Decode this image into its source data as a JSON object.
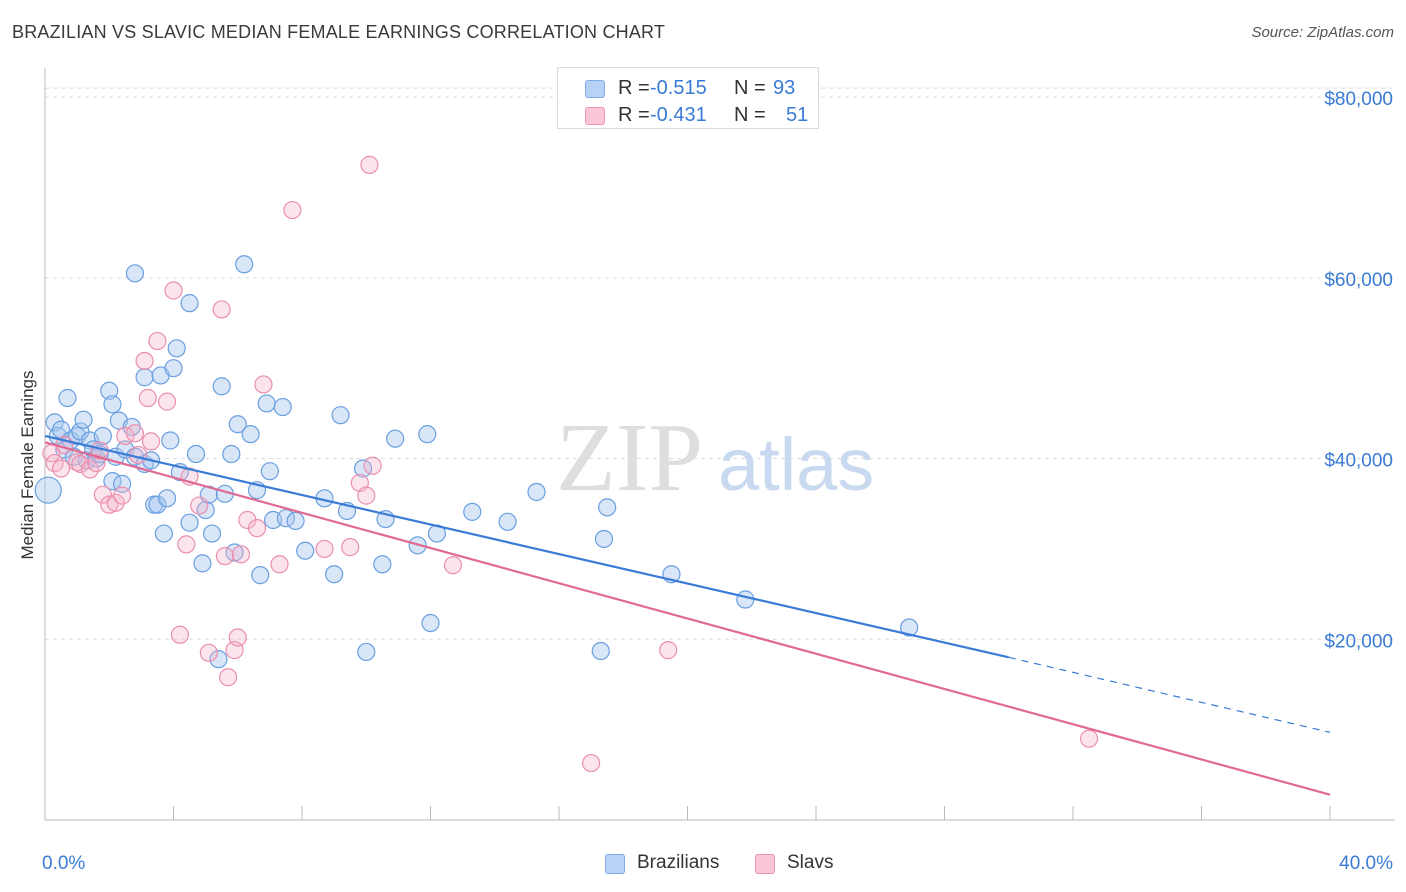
{
  "header": {
    "title": "BRAZILIAN VS SLAVIC MEDIAN FEMALE EARNINGS CORRELATION CHART",
    "source": "Source: ZipAtlas.com"
  },
  "legend": {
    "rows": [
      {
        "r_label": "R =",
        "r_value": "-0.515",
        "n_label": "N =",
        "n_value": "93"
      },
      {
        "r_label": "R =",
        "r_value": "-0.431",
        "n_label": "N =",
        "n_value": "51"
      }
    ],
    "bottom": [
      "Brazilians",
      "Slavs"
    ]
  },
  "watermark": {
    "zip": "ZIP",
    "atlas": "atlas"
  },
  "colors": {
    "blue": "#3a7bd5",
    "blue_fill": "#a9c8f0",
    "pink": "#e06a93",
    "pink_fill": "#f5b3c8",
    "axis_text": "#3a7bd5",
    "grid": "#dddddd"
  },
  "chart_data": {
    "type": "scatter",
    "title": "BRAZILIAN VS SLAVIC MEDIAN FEMALE EARNINGS CORRELATION CHART",
    "xlabel": "",
    "ylabel": "Median Female Earnings",
    "xlim": [
      0,
      40
    ],
    "ylim": [
      0,
      83000
    ],
    "x_tick_labels": [
      "0.0%",
      "40.0%"
    ],
    "y_ticks": [
      20000,
      40000,
      60000,
      80000
    ],
    "y_tick_labels": [
      "$20,000",
      "$40,000",
      "$60,000",
      "$80,000"
    ],
    "grid": true,
    "legend_placement": "top-center",
    "series": [
      {
        "name": "Brazilians",
        "r": -0.515,
        "n": 93,
        "trend": {
          "x0": 0,
          "y0": 42500,
          "x1": 30,
          "y1": 18000,
          "dashed_to_x": 40,
          "dashed_to_y": 9700
        },
        "points": [
          [
            0.1,
            36500
          ],
          [
            0.3,
            44000
          ],
          [
            0.4,
            42500
          ],
          [
            0.5,
            43200
          ],
          [
            0.6,
            41000
          ],
          [
            0.7,
            46700
          ],
          [
            0.8,
            42000
          ],
          [
            0.9,
            40200
          ],
          [
            1.0,
            42500
          ],
          [
            1.1,
            43000
          ],
          [
            1.2,
            44300
          ],
          [
            1.3,
            39800
          ],
          [
            1.4,
            42000
          ],
          [
            1.5,
            41000
          ],
          [
            1.6,
            40000
          ],
          [
            1.7,
            40500
          ],
          [
            1.8,
            42500
          ],
          [
            2.0,
            47500
          ],
          [
            2.1,
            46000
          ],
          [
            2.1,
            37500
          ],
          [
            2.2,
            40200
          ],
          [
            2.3,
            44200
          ],
          [
            2.4,
            37200
          ],
          [
            2.5,
            41000
          ],
          [
            2.7,
            43500
          ],
          [
            2.8,
            40200
          ],
          [
            2.8,
            60500
          ],
          [
            3.1,
            49000
          ],
          [
            3.1,
            39400
          ],
          [
            3.3,
            39800
          ],
          [
            3.4,
            34900
          ],
          [
            3.5,
            34900
          ],
          [
            3.6,
            49200
          ],
          [
            3.7,
            31700
          ],
          [
            3.8,
            35600
          ],
          [
            3.9,
            42000
          ],
          [
            4.0,
            50000
          ],
          [
            4.1,
            52200
          ],
          [
            4.2,
            38500
          ],
          [
            4.5,
            57200
          ],
          [
            4.5,
            32900
          ],
          [
            4.7,
            40500
          ],
          [
            4.9,
            28400
          ],
          [
            5.0,
            34300
          ],
          [
            5.1,
            36000
          ],
          [
            5.2,
            31700
          ],
          [
            5.4,
            17800
          ],
          [
            5.5,
            48000
          ],
          [
            5.6,
            36100
          ],
          [
            5.8,
            40500
          ],
          [
            5.9,
            29600
          ],
          [
            6.0,
            43800
          ],
          [
            6.2,
            61500
          ],
          [
            6.4,
            42700
          ],
          [
            6.6,
            36500
          ],
          [
            6.7,
            27100
          ],
          [
            6.9,
            46100
          ],
          [
            7.0,
            38600
          ],
          [
            7.1,
            33200
          ],
          [
            7.4,
            45700
          ],
          [
            7.5,
            33400
          ],
          [
            7.8,
            33100
          ],
          [
            8.1,
            29800
          ],
          [
            8.7,
            35600
          ],
          [
            9.0,
            27200
          ],
          [
            9.2,
            44800
          ],
          [
            9.4,
            34200
          ],
          [
            9.9,
            38900
          ],
          [
            10.0,
            18600
          ],
          [
            10.5,
            28300
          ],
          [
            10.6,
            33300
          ],
          [
            10.9,
            42200
          ],
          [
            11.6,
            30400
          ],
          [
            11.9,
            42700
          ],
          [
            12.0,
            21800
          ],
          [
            12.2,
            31700
          ],
          [
            13.3,
            34100
          ],
          [
            14.4,
            33000
          ],
          [
            15.3,
            36300
          ],
          [
            17.3,
            18700
          ],
          [
            17.4,
            31100
          ],
          [
            17.5,
            34600
          ],
          [
            19.5,
            27200
          ],
          [
            21.8,
            24400
          ],
          [
            26.9,
            21300
          ]
        ]
      },
      {
        "name": "Slavs",
        "r": -0.431,
        "n": 51,
        "trend": {
          "x0": 0,
          "y0": 41800,
          "x1": 40,
          "y1": 2800
        },
        "points": [
          [
            0.2,
            40600
          ],
          [
            0.3,
            39500
          ],
          [
            0.5,
            38900
          ],
          [
            0.6,
            41500
          ],
          [
            1.0,
            39600
          ],
          [
            1.1,
            39400
          ],
          [
            1.4,
            38800
          ],
          [
            1.6,
            39500
          ],
          [
            1.7,
            40900
          ],
          [
            1.8,
            36000
          ],
          [
            2.0,
            34900
          ],
          [
            2.2,
            35100
          ],
          [
            2.4,
            35900
          ],
          [
            2.5,
            42500
          ],
          [
            2.8,
            42800
          ],
          [
            2.9,
            40400
          ],
          [
            3.1,
            50800
          ],
          [
            3.2,
            46700
          ],
          [
            3.3,
            41900
          ],
          [
            3.5,
            53000
          ],
          [
            3.8,
            46300
          ],
          [
            4.0,
            58600
          ],
          [
            4.2,
            20500
          ],
          [
            4.4,
            30500
          ],
          [
            4.5,
            38000
          ],
          [
            4.8,
            34800
          ],
          [
            5.1,
            18500
          ],
          [
            5.5,
            56500
          ],
          [
            5.6,
            29200
          ],
          [
            5.7,
            15800
          ],
          [
            5.9,
            18800
          ],
          [
            6.0,
            20200
          ],
          [
            6.1,
            29400
          ],
          [
            6.3,
            33200
          ],
          [
            6.6,
            32300
          ],
          [
            6.8,
            48200
          ],
          [
            7.3,
            28300
          ],
          [
            7.7,
            67500
          ],
          [
            8.7,
            30000
          ],
          [
            9.5,
            30200
          ],
          [
            9.8,
            37300
          ],
          [
            10.0,
            35900
          ],
          [
            10.2,
            39200
          ],
          [
            10.1,
            72500
          ],
          [
            12.7,
            28200
          ],
          [
            17.0,
            6300
          ],
          [
            19.4,
            18800
          ],
          [
            32.5,
            9000
          ]
        ]
      }
    ]
  }
}
